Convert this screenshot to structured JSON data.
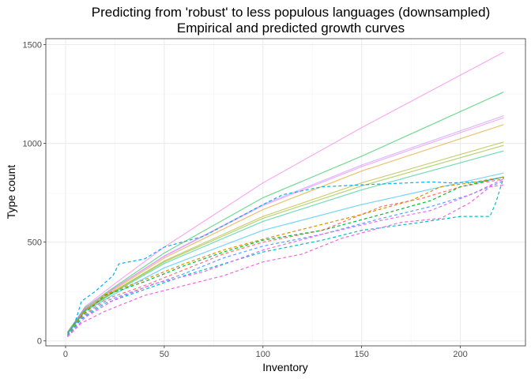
{
  "chart_data": {
    "type": "line",
    "title": "Predicting from 'robust' to less populous languages (downsampled)",
    "subtitle": "Empirical and predicted growth curves",
    "xlabel": "Inventory",
    "ylabel": "Type count",
    "xlim": [
      -10,
      233
    ],
    "ylim": [
      -25,
      1530
    ],
    "xticks": [
      0,
      50,
      100,
      150,
      200
    ],
    "yticks": [
      0,
      500,
      1000,
      1500
    ],
    "grid": true,
    "legend": "none",
    "predicted": [
      {
        "color": "#F564E3",
        "values": [
          [
            1,
            40
          ],
          [
            10,
            175
          ],
          [
            25,
            290
          ],
          [
            50,
            475
          ],
          [
            100,
            800
          ],
          [
            150,
            1080
          ],
          [
            222,
            1462
          ]
        ]
      },
      {
        "color": "#00BA38",
        "values": [
          [
            1,
            45
          ],
          [
            10,
            170
          ],
          [
            25,
            275
          ],
          [
            50,
            445
          ],
          [
            100,
            725
          ],
          [
            150,
            935
          ],
          [
            222,
            1260
          ]
        ]
      },
      {
        "color": "#B983FF",
        "values": [
          [
            1,
            42
          ],
          [
            10,
            165
          ],
          [
            25,
            270
          ],
          [
            50,
            430
          ],
          [
            100,
            690
          ],
          [
            150,
            890
          ],
          [
            222,
            1140
          ]
        ]
      },
      {
        "color": "#E76BF3",
        "values": [
          [
            1,
            42
          ],
          [
            10,
            163
          ],
          [
            25,
            268
          ],
          [
            50,
            428
          ],
          [
            100,
            685
          ],
          [
            150,
            882
          ],
          [
            222,
            1130
          ]
        ]
      },
      {
        "color": "#D89000",
        "values": [
          [
            1,
            40
          ],
          [
            10,
            160
          ],
          [
            25,
            262
          ],
          [
            50,
            420
          ],
          [
            100,
            665
          ],
          [
            150,
            860
          ],
          [
            222,
            1095
          ]
        ]
      },
      {
        "color": "#A3A500",
        "values": [
          [
            1,
            40
          ],
          [
            10,
            158
          ],
          [
            25,
            255
          ],
          [
            50,
            405
          ],
          [
            100,
            630
          ],
          [
            150,
            800
          ],
          [
            222,
            1007
          ]
        ]
      },
      {
        "color": "#7CAE00",
        "values": [
          [
            1,
            40
          ],
          [
            10,
            156
          ],
          [
            25,
            252
          ],
          [
            50,
            400
          ],
          [
            100,
            620
          ],
          [
            150,
            785
          ],
          [
            222,
            990
          ]
        ]
      },
      {
        "color": "#00BF7D",
        "values": [
          [
            1,
            39
          ],
          [
            10,
            155
          ],
          [
            25,
            248
          ],
          [
            50,
            392
          ],
          [
            100,
            605
          ],
          [
            150,
            765
          ],
          [
            222,
            962
          ]
        ]
      },
      {
        "color": "#00B0F6",
        "values": [
          [
            1,
            35
          ],
          [
            10,
            150
          ],
          [
            25,
            238
          ],
          [
            50,
            370
          ],
          [
            100,
            560
          ],
          [
            150,
            690
          ],
          [
            222,
            850
          ]
        ]
      }
    ],
    "empirical": [
      {
        "color": "#00B0F6",
        "values": [
          [
            1,
            30
          ],
          [
            5,
            100
          ],
          [
            8,
            200
          ],
          [
            15,
            250
          ],
          [
            24,
            330
          ],
          [
            27,
            390
          ],
          [
            40,
            415
          ],
          [
            50,
            475
          ],
          [
            70,
            530
          ],
          [
            100,
            690
          ],
          [
            110,
            740
          ],
          [
            120,
            760
          ],
          [
            130,
            780
          ],
          [
            150,
            790
          ],
          [
            185,
            805
          ],
          [
            195,
            800
          ],
          [
            210,
            805
          ],
          [
            222,
            830
          ]
        ]
      },
      {
        "color": "#F8766D",
        "values": [
          [
            1,
            22
          ],
          [
            8,
            120
          ],
          [
            20,
            210
          ],
          [
            40,
            280
          ],
          [
            60,
            360
          ],
          [
            80,
            440
          ],
          [
            100,
            500
          ],
          [
            130,
            560
          ],
          [
            160,
            680
          ],
          [
            180,
            720
          ],
          [
            200,
            780
          ],
          [
            222,
            820
          ]
        ]
      },
      {
        "color": "#00BA38",
        "values": [
          [
            1,
            25
          ],
          [
            8,
            125
          ],
          [
            20,
            230
          ],
          [
            40,
            300
          ],
          [
            60,
            380
          ],
          [
            80,
            450
          ],
          [
            100,
            510
          ],
          [
            130,
            560
          ],
          [
            160,
            640
          ],
          [
            185,
            710
          ],
          [
            200,
            780
          ],
          [
            222,
            830
          ]
        ]
      },
      {
        "color": "#D89000",
        "values": [
          [
            1,
            25
          ],
          [
            8,
            130
          ],
          [
            20,
            235
          ],
          [
            40,
            310
          ],
          [
            60,
            390
          ],
          [
            80,
            460
          ],
          [
            100,
            515
          ],
          [
            130,
            590
          ],
          [
            150,
            640
          ],
          [
            175,
            710
          ],
          [
            190,
            780
          ],
          [
            205,
            800
          ],
          [
            222,
            830
          ]
        ]
      },
      {
        "color": "#619CFF",
        "values": [
          [
            1,
            24
          ],
          [
            8,
            115
          ],
          [
            20,
            200
          ],
          [
            40,
            270
          ],
          [
            60,
            340
          ],
          [
            80,
            420
          ],
          [
            100,
            480
          ],
          [
            130,
            540
          ],
          [
            160,
            620
          ],
          [
            185,
            680
          ],
          [
            205,
            740
          ],
          [
            222,
            810
          ]
        ]
      },
      {
        "color": "#00BFC4",
        "values": [
          [
            1,
            25
          ],
          [
            8,
            110
          ],
          [
            20,
            190
          ],
          [
            40,
            260
          ],
          [
            60,
            330
          ],
          [
            80,
            390
          ],
          [
            100,
            450
          ],
          [
            130,
            510
          ],
          [
            150,
            560
          ],
          [
            180,
            600
          ],
          [
            200,
            630
          ],
          [
            215,
            630
          ],
          [
            218,
            700
          ],
          [
            222,
            830
          ]
        ]
      },
      {
        "color": "#F564E3",
        "values": [
          [
            1,
            20
          ],
          [
            8,
            90
          ],
          [
            20,
            150
          ],
          [
            40,
            230
          ],
          [
            60,
            280
          ],
          [
            80,
            330
          ],
          [
            100,
            400
          ],
          [
            120,
            440
          ],
          [
            140,
            520
          ],
          [
            170,
            600
          ],
          [
            190,
            620
          ],
          [
            205,
            700
          ],
          [
            215,
            780
          ],
          [
            222,
            790
          ]
        ]
      },
      {
        "color": "#E76BF3",
        "values": [
          [
            1,
            22
          ],
          [
            10,
            120
          ],
          [
            25,
            210
          ],
          [
            45,
            290
          ],
          [
            70,
            350
          ],
          [
            100,
            460
          ],
          [
            130,
            540
          ],
          [
            160,
            610
          ],
          [
            185,
            660
          ],
          [
            205,
            740
          ],
          [
            222,
            820
          ]
        ]
      }
    ]
  }
}
